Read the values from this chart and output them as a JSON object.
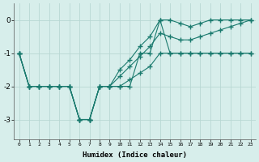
{
  "xlabel": "Humidex (Indice chaleur)",
  "bg_color": "#d7eeeb",
  "line_color": "#1a7a6e",
  "grid_color": "#b8d8d4",
  "xlim": [
    -0.5,
    23.5
  ],
  "ylim": [
    -3.6,
    0.5
  ],
  "yticks": [
    0,
    -1,
    -2,
    -3
  ],
  "xticks": [
    0,
    1,
    2,
    3,
    4,
    5,
    6,
    7,
    8,
    9,
    10,
    11,
    12,
    13,
    14,
    15,
    16,
    17,
    18,
    19,
    20,
    21,
    22,
    23
  ],
  "series": [
    {
      "x": [
        0,
        1,
        2,
        3,
        4,
        5,
        6,
        7,
        8,
        9,
        10,
        11,
        12,
        13,
        14,
        15,
        16,
        17,
        18,
        19,
        20,
        21,
        22,
        23
      ],
      "y": [
        -1.0,
        -2.0,
        -2.0,
        -2.0,
        -2.0,
        -2.0,
        -3.0,
        -3.0,
        -2.0,
        -2.0,
        -2.0,
        -2.0,
        -1.0,
        -1.0,
        0.0,
        -1.0,
        -1.0,
        -1.0,
        -1.0,
        -1.0,
        -1.0,
        -1.0,
        -1.0,
        -1.0
      ]
    },
    {
      "x": [
        0,
        1,
        2,
        3,
        4,
        5,
        6,
        7,
        8,
        9,
        10,
        11,
        12,
        13,
        14,
        15,
        16,
        17,
        18,
        19,
        20,
        21,
        22,
        23
      ],
      "y": [
        -1.0,
        -2.0,
        -2.0,
        -2.0,
        -2.0,
        -2.0,
        -3.0,
        -3.0,
        -2.0,
        -2.0,
        -1.5,
        -1.2,
        -0.8,
        -0.5,
        0.0,
        0.0,
        -0.1,
        -0.2,
        -0.1,
        0.0,
        0.0,
        0.0,
        0.0,
        0.0
      ]
    },
    {
      "x": [
        0,
        1,
        2,
        3,
        4,
        5,
        6,
        7,
        8,
        9,
        10,
        11,
        12,
        13,
        14,
        15,
        16,
        17,
        18,
        19,
        20,
        21,
        22,
        23
      ],
      "y": [
        -1.0,
        -2.0,
        -2.0,
        -2.0,
        -2.0,
        -2.0,
        -3.0,
        -3.0,
        -2.0,
        -2.0,
        -1.7,
        -1.4,
        -1.1,
        -0.8,
        -0.4,
        -0.5,
        -0.6,
        -0.6,
        -0.5,
        -0.4,
        -0.3,
        -0.2,
        -0.1,
        0.0
      ]
    },
    {
      "x": [
        0,
        1,
        2,
        3,
        4,
        5,
        6,
        7,
        8,
        9,
        10,
        11,
        12,
        13,
        14,
        15,
        16,
        17,
        18,
        19,
        20,
        21,
        22,
        23
      ],
      "y": [
        -1.0,
        -2.0,
        -2.0,
        -2.0,
        -2.0,
        -2.0,
        -3.0,
        -3.0,
        -2.0,
        -2.0,
        -2.0,
        -1.8,
        -1.6,
        -1.4,
        -1.0,
        -1.0,
        -1.0,
        -1.0,
        -1.0,
        -1.0,
        -1.0,
        -1.0,
        -1.0,
        -1.0
      ]
    }
  ]
}
